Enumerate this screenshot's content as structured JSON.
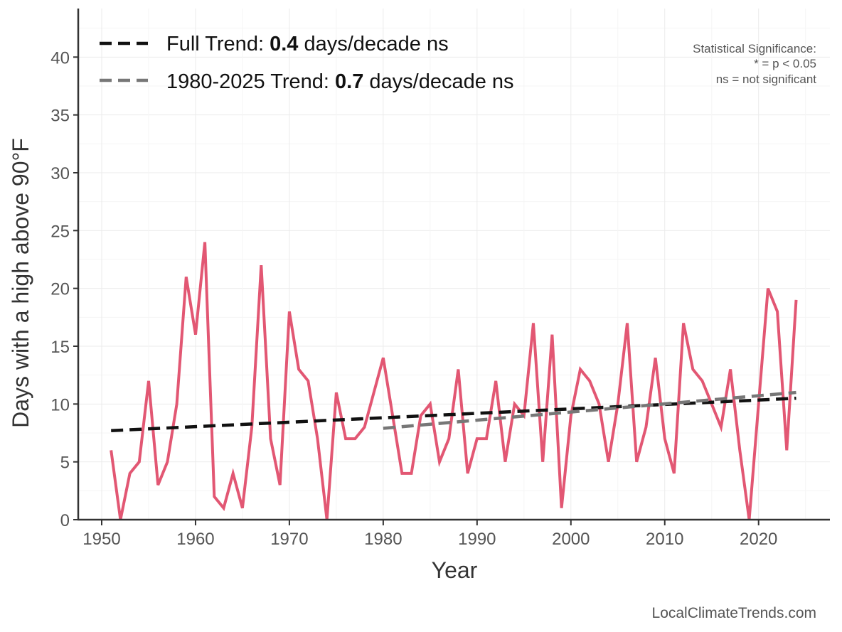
{
  "chart_data": {
    "type": "line",
    "title": "",
    "xlabel": "Year",
    "ylabel": "Days with a high above 90°F",
    "xlim": [
      1947.5,
      2027.6
    ],
    "ylim": [
      0,
      44.2
    ],
    "xticks": [
      1950,
      1960,
      1970,
      1980,
      1990,
      2000,
      2010,
      2020
    ],
    "yticks": [
      0,
      5,
      10,
      15,
      20,
      25,
      30,
      35,
      40
    ],
    "grid": true,
    "x": [
      1951,
      1952,
      1953,
      1954,
      1955,
      1956,
      1957,
      1958,
      1959,
      1960,
      1961,
      1962,
      1963,
      1964,
      1965,
      1966,
      1967,
      1968,
      1969,
      1970,
      1971,
      1972,
      1973,
      1974,
      1975,
      1976,
      1977,
      1978,
      1979,
      1980,
      1981,
      1982,
      1983,
      1984,
      1985,
      1986,
      1987,
      1988,
      1989,
      1990,
      1991,
      1992,
      1993,
      1994,
      1995,
      1996,
      1997,
      1998,
      1999,
      2000,
      2001,
      2002,
      2003,
      2004,
      2005,
      2006,
      2007,
      2008,
      2009,
      2010,
      2011,
      2012,
      2013,
      2014,
      2015,
      2016,
      2017,
      2018,
      2019,
      2020,
      2021,
      2022,
      2023,
      2024
    ],
    "series": [
      {
        "name": "Days above 90°F",
        "color": "#e04e6c",
        "values": [
          6,
          0,
          4,
          5,
          12,
          3,
          5,
          10,
          21,
          16,
          24,
          2,
          1,
          4,
          1,
          8,
          22,
          7,
          3,
          18,
          13,
          12,
          7,
          0,
          11,
          7,
          7,
          8,
          11,
          14,
          9,
          4,
          4,
          9,
          10,
          5,
          7,
          13,
          4,
          7,
          7,
          12,
          5,
          10,
          9,
          17,
          5,
          16,
          1,
          9,
          13,
          12,
          10,
          5,
          10,
          17,
          5,
          8,
          14,
          7,
          4,
          17,
          13,
          12,
          10,
          8,
          13,
          6,
          0,
          10,
          20,
          18,
          6,
          19
        ]
      }
    ],
    "trends": [
      {
        "name": "Full Trend",
        "color": "#111111",
        "x": [
          1951,
          2024
        ],
        "y": [
          7.7,
          10.5
        ],
        "label_prefix": "Full Trend: ",
        "value": "0.4",
        "label_suffix": " days/decade ns"
      },
      {
        "name": "1980-2025 Trend",
        "color": "#777777",
        "x": [
          1980,
          2024
        ],
        "y": [
          7.9,
          11.0
        ],
        "label_prefix": "1980-2025 Trend: ",
        "value": "0.7",
        "label_suffix": " days/decade ns"
      }
    ],
    "legend_placement": "top-left",
    "annotation": {
      "line1": "Statistical Significance:",
      "line2": "* = p < 0.05",
      "line3": "ns = not significant"
    },
    "source": "LocalClimateTrends.com"
  }
}
